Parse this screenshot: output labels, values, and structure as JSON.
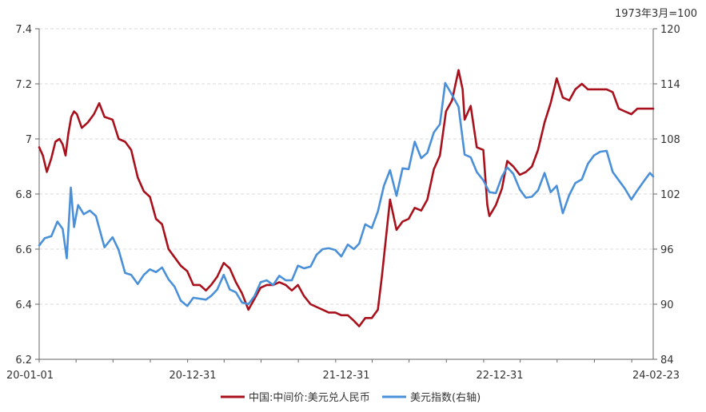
{
  "chart_data": {
    "type": "line",
    "unit_note": "1973年3月=100",
    "x_tick_labels": [
      "20-01-01",
      "20-12-31",
      "21-12-31",
      "22-12-31",
      "24-02-23"
    ],
    "x_range": [
      "2020-01-01",
      "2024-02-23"
    ],
    "y_left": {
      "range": [
        6.2,
        7.4
      ],
      "ticks": [
        "7.4",
        "7.2",
        "7",
        "6.8",
        "6.6",
        "6.4",
        "6.2"
      ]
    },
    "y_right": {
      "range": [
        84,
        120
      ],
      "ticks": [
        "120",
        "114",
        "108",
        "102",
        "96",
        "90",
        "84"
      ]
    },
    "grid": true,
    "legend_position": "bottom",
    "colors": {
      "cny": "#a8111c",
      "dxy": "#4a90d9"
    },
    "series": [
      {
        "name": "中国:中间价:美元兑人民币",
        "axis": "left",
        "points": [
          [
            "2020-01-01",
            6.97
          ],
          [
            "2020-01-10",
            6.94
          ],
          [
            "2020-01-20",
            6.88
          ],
          [
            "2020-01-31",
            6.93
          ],
          [
            "2020-02-10",
            6.99
          ],
          [
            "2020-02-20",
            7.0
          ],
          [
            "2020-02-28",
            6.98
          ],
          [
            "2020-03-06",
            6.94
          ],
          [
            "2020-03-13",
            7.02
          ],
          [
            "2020-03-20",
            7.08
          ],
          [
            "2020-03-27",
            7.1
          ],
          [
            "2020-04-03",
            7.09
          ],
          [
            "2020-04-15",
            7.04
          ],
          [
            "2020-04-30",
            7.06
          ],
          [
            "2020-05-15",
            7.09
          ],
          [
            "2020-05-28",
            7.13
          ],
          [
            "2020-06-10",
            7.08
          ],
          [
            "2020-06-30",
            7.07
          ],
          [
            "2020-07-15",
            7.0
          ],
          [
            "2020-07-31",
            6.99
          ],
          [
            "2020-08-15",
            6.96
          ],
          [
            "2020-08-31",
            6.86
          ],
          [
            "2020-09-15",
            6.81
          ],
          [
            "2020-09-30",
            6.79
          ],
          [
            "2020-10-15",
            6.71
          ],
          [
            "2020-10-30",
            6.69
          ],
          [
            "2020-11-15",
            6.6
          ],
          [
            "2020-11-30",
            6.57
          ],
          [
            "2020-12-15",
            6.54
          ],
          [
            "2020-12-31",
            6.52
          ],
          [
            "2021-01-15",
            6.47
          ],
          [
            "2021-01-31",
            6.47
          ],
          [
            "2021-02-15",
            6.45
          ],
          [
            "2021-02-28",
            6.47
          ],
          [
            "2021-03-15",
            6.5
          ],
          [
            "2021-03-31",
            6.55
          ],
          [
            "2021-04-15",
            6.53
          ],
          [
            "2021-04-30",
            6.48
          ],
          [
            "2021-05-15",
            6.44
          ],
          [
            "2021-05-31",
            6.38
          ],
          [
            "2021-06-15",
            6.42
          ],
          [
            "2021-06-30",
            6.46
          ],
          [
            "2021-07-15",
            6.47
          ],
          [
            "2021-07-31",
            6.47
          ],
          [
            "2021-08-15",
            6.48
          ],
          [
            "2021-08-31",
            6.47
          ],
          [
            "2021-09-15",
            6.45
          ],
          [
            "2021-09-30",
            6.47
          ],
          [
            "2021-10-15",
            6.43
          ],
          [
            "2021-10-31",
            6.4
          ],
          [
            "2021-11-15",
            6.39
          ],
          [
            "2021-11-30",
            6.38
          ],
          [
            "2021-12-15",
            6.37
          ],
          [
            "2021-12-31",
            6.37
          ],
          [
            "2022-01-15",
            6.36
          ],
          [
            "2022-01-31",
            6.36
          ],
          [
            "2022-02-15",
            6.34
          ],
          [
            "2022-02-28",
            6.32
          ],
          [
            "2022-03-15",
            6.35
          ],
          [
            "2022-03-31",
            6.35
          ],
          [
            "2022-04-15",
            6.38
          ],
          [
            "2022-04-25",
            6.5
          ],
          [
            "2022-05-05",
            6.64
          ],
          [
            "2022-05-15",
            6.78
          ],
          [
            "2022-05-31",
            6.67
          ],
          [
            "2022-06-15",
            6.7
          ],
          [
            "2022-06-30",
            6.71
          ],
          [
            "2022-07-15",
            6.75
          ],
          [
            "2022-07-31",
            6.74
          ],
          [
            "2022-08-15",
            6.78
          ],
          [
            "2022-08-31",
            6.89
          ],
          [
            "2022-09-15",
            6.94
          ],
          [
            "2022-09-30",
            7.1
          ],
          [
            "2022-10-15",
            7.14
          ],
          [
            "2022-10-31",
            7.25
          ],
          [
            "2022-11-10",
            7.18
          ],
          [
            "2022-11-15",
            7.07
          ],
          [
            "2022-11-30",
            7.12
          ],
          [
            "2022-12-15",
            6.97
          ],
          [
            "2022-12-31",
            6.96
          ],
          [
            "2023-01-10",
            6.76
          ],
          [
            "2023-01-15",
            6.72
          ],
          [
            "2023-01-31",
            6.76
          ],
          [
            "2023-02-15",
            6.82
          ],
          [
            "2023-02-28",
            6.92
          ],
          [
            "2023-03-15",
            6.9
          ],
          [
            "2023-03-31",
            6.87
          ],
          [
            "2023-04-15",
            6.88
          ],
          [
            "2023-04-30",
            6.9
          ],
          [
            "2023-05-15",
            6.96
          ],
          [
            "2023-05-31",
            7.06
          ],
          [
            "2023-06-15",
            7.13
          ],
          [
            "2023-06-30",
            7.22
          ],
          [
            "2023-07-15",
            7.15
          ],
          [
            "2023-07-31",
            7.14
          ],
          [
            "2023-08-15",
            7.18
          ],
          [
            "2023-08-31",
            7.2
          ],
          [
            "2023-09-15",
            7.18
          ],
          [
            "2023-09-30",
            7.18
          ],
          [
            "2023-10-15",
            7.18
          ],
          [
            "2023-10-31",
            7.18
          ],
          [
            "2023-11-15",
            7.17
          ],
          [
            "2023-11-30",
            7.11
          ],
          [
            "2023-12-15",
            7.1
          ],
          [
            "2023-12-31",
            7.09
          ],
          [
            "2024-01-15",
            7.11
          ],
          [
            "2024-01-31",
            7.11
          ],
          [
            "2024-02-15",
            7.11
          ],
          [
            "2024-02-23",
            7.11
          ]
        ]
      },
      {
        "name": "美元指数(右轴)",
        "axis": "right",
        "points": [
          [
            "2020-01-01",
            96.4
          ],
          [
            "2020-01-15",
            97.2
          ],
          [
            "2020-01-31",
            97.4
          ],
          [
            "2020-02-15",
            99.0
          ],
          [
            "2020-02-28",
            98.2
          ],
          [
            "2020-03-09",
            95.0
          ],
          [
            "2020-03-19",
            102.7
          ],
          [
            "2020-03-27",
            98.4
          ],
          [
            "2020-04-06",
            100.8
          ],
          [
            "2020-04-20",
            99.8
          ],
          [
            "2020-05-05",
            100.2
          ],
          [
            "2020-05-20",
            99.6
          ],
          [
            "2020-06-10",
            96.2
          ],
          [
            "2020-06-30",
            97.3
          ],
          [
            "2020-07-15",
            95.9
          ],
          [
            "2020-07-31",
            93.4
          ],
          [
            "2020-08-15",
            93.2
          ],
          [
            "2020-08-31",
            92.2
          ],
          [
            "2020-09-15",
            93.2
          ],
          [
            "2020-09-30",
            93.8
          ],
          [
            "2020-10-15",
            93.5
          ],
          [
            "2020-10-30",
            94.0
          ],
          [
            "2020-11-15",
            92.7
          ],
          [
            "2020-11-30",
            91.9
          ],
          [
            "2020-12-15",
            90.4
          ],
          [
            "2020-12-31",
            89.8
          ],
          [
            "2021-01-15",
            90.7
          ],
          [
            "2021-01-31",
            90.6
          ],
          [
            "2021-02-15",
            90.5
          ],
          [
            "2021-02-28",
            90.9
          ],
          [
            "2021-03-15",
            91.6
          ],
          [
            "2021-03-31",
            93.2
          ],
          [
            "2021-04-15",
            91.6
          ],
          [
            "2021-04-30",
            91.3
          ],
          [
            "2021-05-15",
            90.2
          ],
          [
            "2021-05-31",
            90.0
          ],
          [
            "2021-06-15",
            90.9
          ],
          [
            "2021-06-30",
            92.4
          ],
          [
            "2021-07-15",
            92.6
          ],
          [
            "2021-07-31",
            92.1
          ],
          [
            "2021-08-15",
            93.1
          ],
          [
            "2021-08-31",
            92.6
          ],
          [
            "2021-09-15",
            92.6
          ],
          [
            "2021-09-30",
            94.2
          ],
          [
            "2021-10-15",
            93.9
          ],
          [
            "2021-10-31",
            94.1
          ],
          [
            "2021-11-15",
            95.4
          ],
          [
            "2021-11-30",
            96.0
          ],
          [
            "2021-12-15",
            96.1
          ],
          [
            "2021-12-31",
            95.9
          ],
          [
            "2022-01-15",
            95.2
          ],
          [
            "2022-01-31",
            96.5
          ],
          [
            "2022-02-15",
            96.0
          ],
          [
            "2022-02-28",
            96.6
          ],
          [
            "2022-03-15",
            98.7
          ],
          [
            "2022-03-31",
            98.3
          ],
          [
            "2022-04-15",
            100.1
          ],
          [
            "2022-04-30",
            102.9
          ],
          [
            "2022-05-15",
            104.6
          ],
          [
            "2022-05-31",
            101.8
          ],
          [
            "2022-06-15",
            104.8
          ],
          [
            "2022-06-30",
            104.7
          ],
          [
            "2022-07-15",
            107.7
          ],
          [
            "2022-07-31",
            105.9
          ],
          [
            "2022-08-15",
            106.5
          ],
          [
            "2022-08-31",
            108.7
          ],
          [
            "2022-09-15",
            109.6
          ],
          [
            "2022-09-28",
            114.1
          ],
          [
            "2022-10-15",
            112.8
          ],
          [
            "2022-10-31",
            111.5
          ],
          [
            "2022-11-15",
            106.3
          ],
          [
            "2022-11-30",
            106.0
          ],
          [
            "2022-12-15",
            104.4
          ],
          [
            "2022-12-31",
            103.5
          ],
          [
            "2023-01-15",
            102.2
          ],
          [
            "2023-01-31",
            102.1
          ],
          [
            "2023-02-15",
            103.9
          ],
          [
            "2023-02-28",
            104.9
          ],
          [
            "2023-03-15",
            104.2
          ],
          [
            "2023-03-31",
            102.5
          ],
          [
            "2023-04-15",
            101.6
          ],
          [
            "2023-04-30",
            101.7
          ],
          [
            "2023-05-15",
            102.4
          ],
          [
            "2023-05-31",
            104.3
          ],
          [
            "2023-06-15",
            102.2
          ],
          [
            "2023-06-30",
            102.9
          ],
          [
            "2023-07-15",
            99.9
          ],
          [
            "2023-07-31",
            101.9
          ],
          [
            "2023-08-15",
            103.2
          ],
          [
            "2023-08-31",
            103.6
          ],
          [
            "2023-09-15",
            105.3
          ],
          [
            "2023-09-30",
            106.2
          ],
          [
            "2023-10-15",
            106.6
          ],
          [
            "2023-10-31",
            106.7
          ],
          [
            "2023-11-15",
            104.4
          ],
          [
            "2023-11-30",
            103.5
          ],
          [
            "2023-12-15",
            102.6
          ],
          [
            "2023-12-31",
            101.4
          ],
          [
            "2024-01-15",
            102.4
          ],
          [
            "2024-01-31",
            103.4
          ],
          [
            "2024-02-15",
            104.3
          ],
          [
            "2024-02-23",
            103.9
          ]
        ]
      }
    ]
  }
}
